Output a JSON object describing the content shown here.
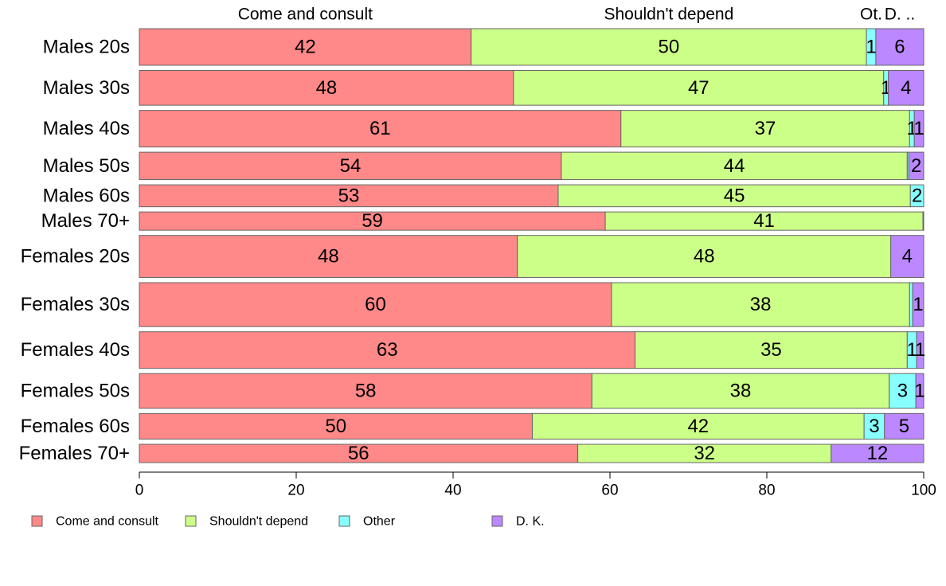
{
  "chart_data": {
    "type": "bar",
    "orientation": "horizontal",
    "stacked": true,
    "title": "",
    "xlabel": "",
    "ylabel": "",
    "xlim": [
      0,
      100
    ],
    "x_ticks": [
      "0",
      "20",
      "40",
      "60",
      "80",
      "100"
    ],
    "top_labels": [
      "Come and consult",
      "Shouldn't depend",
      "Ot.",
      "D. .."
    ],
    "categories": [
      "Males 20s",
      "Males 30s",
      "Males 40s",
      "Males 50s",
      "Males 60s",
      "Males 70+",
      "Females 20s",
      "Females 30s",
      "Females 40s",
      "Females 50s",
      "Females 60s",
      "Females 70+"
    ],
    "series": [
      {
        "name": "Come and consult",
        "color": "#ff8888",
        "values": [
          42.3,
          47.7,
          61.4,
          53.8,
          53.4,
          59.4,
          48.2,
          60.2,
          63.2,
          57.7,
          50.1,
          55.9
        ]
      },
      {
        "name": "Shouldn't depend",
        "color": "#ccff88",
        "values": [
          50.4,
          47.2,
          36.8,
          44.1,
          44.9,
          40.5,
          47.6,
          38.0,
          34.7,
          37.9,
          42.3,
          32.3
        ]
      },
      {
        "name": "Other",
        "color": "#88ffff",
        "values": [
          1.2,
          0.6,
          0.6,
          0.2,
          1.7,
          0.1,
          0.0,
          0.4,
          1.2,
          3.4,
          2.6,
          0.0
        ]
      },
      {
        "name": "D. K.",
        "color": "#bb88ff",
        "values": [
          6.1,
          4.5,
          1.2,
          1.9,
          0.0,
          0.0,
          4.2,
          1.4,
          0.9,
          1.0,
          5.0,
          11.8
        ]
      }
    ],
    "data_labels": [
      [
        "42",
        "50",
        "1",
        "6"
      ],
      [
        "48",
        "47",
        "1",
        "4"
      ],
      [
        "61",
        "37",
        "1",
        "1"
      ],
      [
        "54",
        "44",
        "",
        "2"
      ],
      [
        "53",
        "45",
        "2",
        ""
      ],
      [
        "59",
        "41",
        "",
        ""
      ],
      [
        "48",
        "48",
        "",
        "4"
      ],
      [
        "60",
        "38",
        "",
        "1"
      ],
      [
        "63",
        "35",
        "1",
        "1"
      ],
      [
        "58",
        "38",
        "3",
        "1"
      ],
      [
        "50",
        "42",
        "3",
        "5"
      ],
      [
        "56",
        "32",
        "",
        "12"
      ]
    ],
    "row_weights": [
      1.0,
      0.95,
      1.0,
      0.75,
      0.6,
      0.5,
      1.15,
      1.2,
      1.0,
      0.95,
      0.7,
      0.5
    ],
    "legend": {
      "position": "bottom-left",
      "entries": [
        "Come and consult",
        "Shouldn't depend",
        "Other",
        "D. K."
      ]
    },
    "grid": false
  }
}
